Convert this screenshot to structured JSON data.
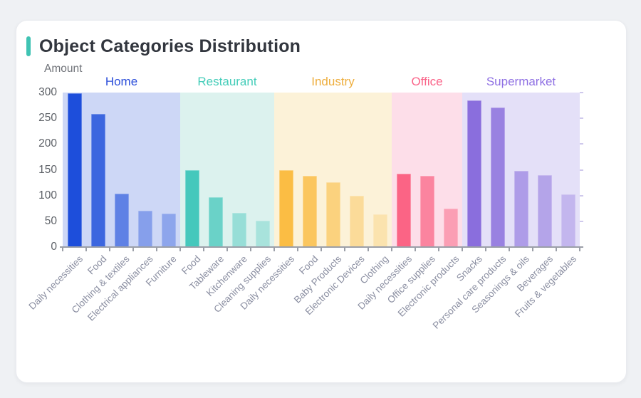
{
  "card": {
    "accent_color": "#3fc3b3"
  },
  "chart_data": {
    "type": "bar",
    "title": "Object Categories Distribution",
    "xlabel": "",
    "ylabel": "Amount",
    "ylim": [
      0,
      300
    ],
    "yticks": [
      0,
      50,
      100,
      150,
      200,
      250,
      300
    ],
    "grid": false,
    "legend_position": "top-inline-group-labels",
    "groups": [
      {
        "name": "Home",
        "label_color": "#2b4eda",
        "band_color": "#cdd7f6",
        "bar_color": "#1d4edb",
        "bar_opacities": [
          1,
          0.82,
          0.62,
          0.4,
          0.36
        ],
        "categories": [
          "Daily necessities",
          "Food",
          "Clothing & textiles",
          "Electrical appliances",
          "Furniture"
        ],
        "values": [
          298,
          258,
          103,
          70,
          65
        ]
      },
      {
        "name": "Restaurant",
        "label_color": "#44cdb9",
        "band_color": "#dcf2ee",
        "bar_color": "#45c8bc",
        "bar_opacities": [
          1,
          0.75,
          0.45,
          0.34
        ],
        "categories": [
          "Food",
          "Tableware",
          "Kitchenware",
          "Cleaning supplies"
        ],
        "values": [
          149,
          97,
          66,
          51
        ]
      },
      {
        "name": "Industry",
        "label_color": "#eeae3e",
        "band_color": "#fcf2d8",
        "bar_color": "#fbbd44",
        "bar_opacities": [
          1,
          0.82,
          0.6,
          0.42,
          0.28
        ],
        "categories": [
          "Daily necessities",
          "Food",
          "Baby Products",
          "Electronic Devices",
          "Clothing"
        ],
        "values": [
          150,
          138,
          126,
          100,
          63
        ]
      },
      {
        "name": "Office",
        "label_color": "#fa6489",
        "band_color": "#fddee9",
        "bar_color": "#fb6485",
        "bar_opacities": [
          1,
          0.73,
          0.52
        ],
        "categories": [
          "Daily necessities",
          "Office supplies",
          "Electronic products"
        ],
        "values": [
          142,
          138,
          75
        ]
      },
      {
        "name": "Supermarket",
        "label_color": "#8e6fe3",
        "band_color": "#e4e0f8",
        "bar_color": "#8a6edd",
        "bar_opacities": [
          1,
          0.83,
          0.59,
          0.52,
          0.36
        ],
        "categories": [
          "Snacks",
          "Personal care products",
          "Seasonings & oils",
          "Beverages",
          "Fruits & vegetables"
        ],
        "values": [
          285,
          271,
          148,
          140,
          102
        ]
      }
    ]
  }
}
